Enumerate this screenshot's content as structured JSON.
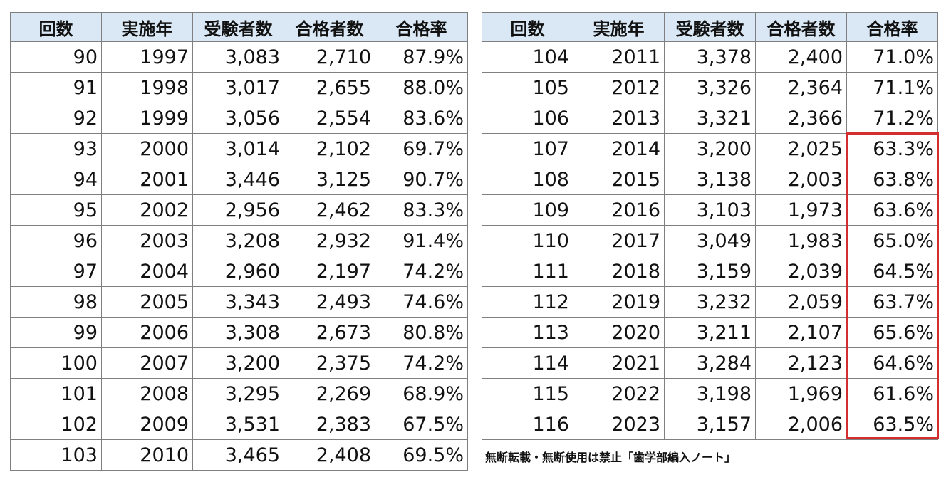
{
  "headers": [
    "回数",
    "実施年",
    "受験者数",
    "合格者数",
    "合格率"
  ],
  "left_table": [
    [
      "90",
      "1997",
      "3,083",
      "2,710",
      "87.9%"
    ],
    [
      "91",
      "1998",
      "3,017",
      "2,655",
      "88.0%"
    ],
    [
      "92",
      "1999",
      "3,056",
      "2,554",
      "83.6%"
    ],
    [
      "93",
      "2000",
      "3,014",
      "2,102",
      "69.7%"
    ],
    [
      "94",
      "2001",
      "3,446",
      "3,125",
      "90.7%"
    ],
    [
      "95",
      "2002",
      "2,956",
      "2,462",
      "83.3%"
    ],
    [
      "96",
      "2003",
      "3,208",
      "2,932",
      "91.4%"
    ],
    [
      "97",
      "2004",
      "2,960",
      "2,197",
      "74.2%"
    ],
    [
      "98",
      "2005",
      "3,343",
      "2,493",
      "74.6%"
    ],
    [
      "99",
      "2006",
      "3,308",
      "2,673",
      "80.8%"
    ],
    [
      "100",
      "2007",
      "3,200",
      "2,375",
      "74.2%"
    ],
    [
      "101",
      "2008",
      "3,295",
      "2,269",
      "68.9%"
    ],
    [
      "102",
      "2009",
      "3,531",
      "2,383",
      "67.5%"
    ],
    [
      "103",
      "2010",
      "3,465",
      "2,408",
      "69.5%"
    ]
  ],
  "right_table": [
    [
      "104",
      "2011",
      "3,378",
      "2,400",
      "71.0%"
    ],
    [
      "105",
      "2012",
      "3,326",
      "2,364",
      "71.1%"
    ],
    [
      "106",
      "2013",
      "3,321",
      "2,366",
      "71.2%"
    ],
    [
      "107",
      "2014",
      "3,200",
      "2,025",
      "63.3%"
    ],
    [
      "108",
      "2015",
      "3,138",
      "2,003",
      "63.8%"
    ],
    [
      "109",
      "2016",
      "3,103",
      "1,973",
      "63.6%"
    ],
    [
      "110",
      "2017",
      "3,049",
      "1,983",
      "65.0%"
    ],
    [
      "111",
      "2018",
      "3,159",
      "2,039",
      "64.5%"
    ],
    [
      "112",
      "2019",
      "3,232",
      "2,059",
      "63.7%"
    ],
    [
      "113",
      "2020",
      "3,211",
      "2,107",
      "65.6%"
    ],
    [
      "114",
      "2021",
      "3,284",
      "2,123",
      "64.6%"
    ],
    [
      "115",
      "2022",
      "3,198",
      "1,969",
      "61.6%"
    ],
    [
      "116",
      "2023",
      "3,157",
      "2,006",
      "63.5%"
    ]
  ],
  "notice": "無断転載・無断使用は禁止「歯学部編入ノート」",
  "colors": {
    "header_bg": "#dae8f5",
    "border": "#7f7f7f",
    "highlight": "#d32f2f"
  }
}
